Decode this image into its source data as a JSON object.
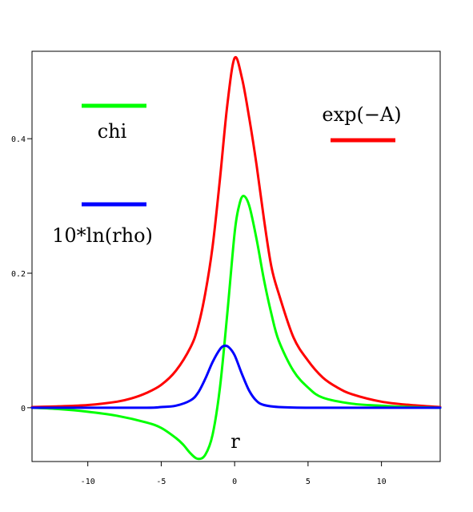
{
  "chart_data": {
    "type": "line",
    "title": "",
    "xlabel": "r",
    "ylabel": "",
    "xlim": [
      -13.8,
      14
    ],
    "ylim": [
      -0.08,
      0.53
    ],
    "grid": false,
    "x_ticks": [
      -10,
      -5,
      0,
      5,
      10
    ],
    "x_tick_labels": [
      "-10",
      "-5",
      "0",
      "5",
      "10"
    ],
    "y_ticks": [
      0,
      0.2,
      0.4
    ],
    "y_tick_labels": [
      "0",
      "0.2",
      "0.4"
    ],
    "series": [
      {
        "name": "exp(−A)",
        "color": "#ff0000",
        "x": [
          -13.8,
          -12,
          -10,
          -8,
          -7,
          -6,
          -5,
          -4,
          -3,
          -2.5,
          -2,
          -1.5,
          -1,
          -0.5,
          0,
          0.5,
          1,
          1.5,
          2,
          2.5,
          3,
          4,
          5,
          6,
          7,
          8,
          10,
          12,
          14
        ],
        "y": [
          0.001,
          0.002,
          0.004,
          0.009,
          0.014,
          0.022,
          0.034,
          0.055,
          0.09,
          0.12,
          0.17,
          0.24,
          0.34,
          0.45,
          0.52,
          0.49,
          0.43,
          0.36,
          0.28,
          0.21,
          0.17,
          0.105,
          0.07,
          0.045,
          0.03,
          0.02,
          0.009,
          0.004,
          0.001
        ]
      },
      {
        "name": "chi",
        "color": "#00ff00",
        "x": [
          -13.8,
          -12,
          -10,
          -8,
          -6,
          -5,
          -4,
          -3.5,
          -3,
          -2.5,
          -2,
          -1.5,
          -1,
          -0.5,
          0,
          0.3,
          0.6,
          1,
          1.5,
          2,
          2.5,
          3,
          4,
          5,
          6,
          8,
          10,
          12,
          14
        ],
        "y": [
          0,
          -0.002,
          -0.006,
          -0.012,
          -0.022,
          -0.03,
          -0.045,
          -0.055,
          -0.068,
          -0.076,
          -0.07,
          -0.04,
          0.03,
          0.14,
          0.26,
          0.3,
          0.315,
          0.3,
          0.25,
          0.19,
          0.14,
          0.1,
          0.055,
          0.03,
          0.015,
          0.006,
          0.003,
          0.001,
          0
        ]
      },
      {
        "name": "10*ln(rho)",
        "color": "#0000ff",
        "x": [
          -13.8,
          -10,
          -6,
          -5,
          -4,
          -3,
          -2.5,
          -2,
          -1.5,
          -1,
          -0.7,
          -0.4,
          0,
          0.5,
          1,
          1.5,
          2,
          3,
          5,
          10,
          14
        ],
        "y": [
          0,
          0,
          0,
          0.001,
          0.003,
          0.011,
          0.022,
          0.043,
          0.068,
          0.087,
          0.092,
          0.09,
          0.078,
          0.05,
          0.025,
          0.01,
          0.004,
          0.001,
          0,
          0,
          0
        ]
      }
    ],
    "legend": [
      {
        "label": "chi",
        "color": "#00ff00"
      },
      {
        "label": "10*ln(rho)",
        "color": "#0000ff"
      },
      {
        "label": "exp(−A)",
        "color": "#ff0000"
      }
    ]
  }
}
